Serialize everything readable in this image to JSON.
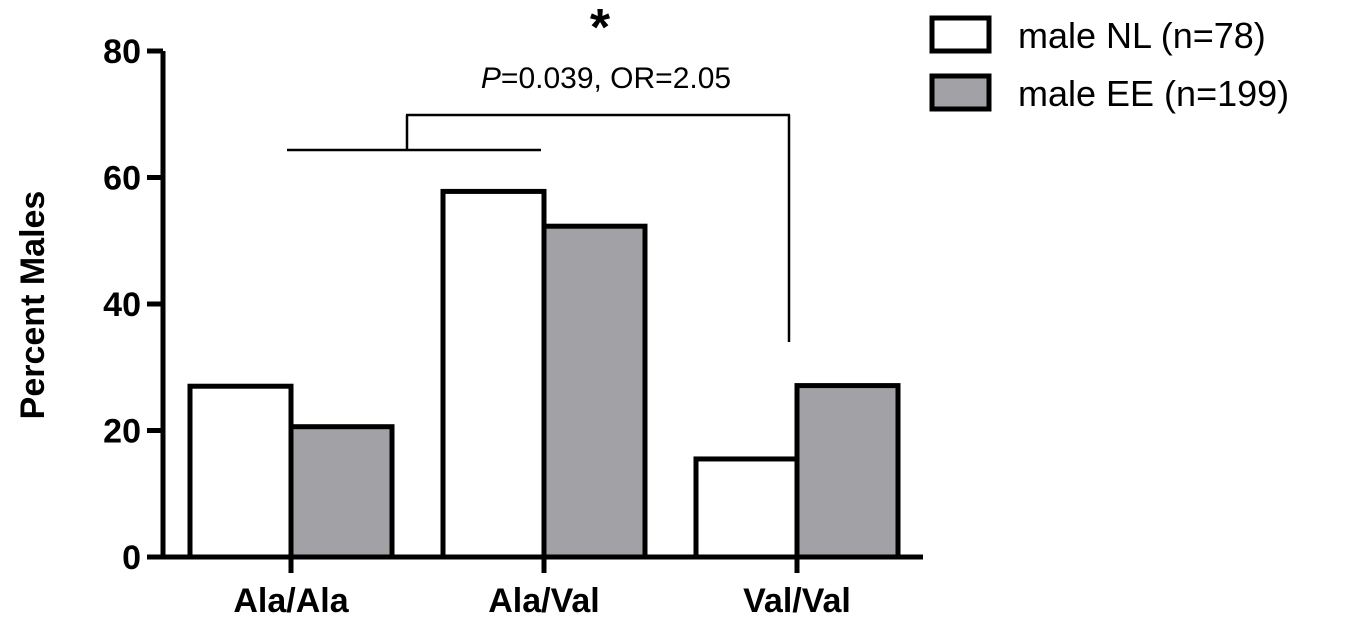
{
  "chart_data": {
    "type": "bar",
    "categories": [
      "Ala/Ala",
      "Ala/Val",
      "Val/Val"
    ],
    "series": [
      {
        "name": "male NL (n=78)",
        "values": [
          27,
          57.8,
          15.5
        ],
        "color": "#ffffff"
      },
      {
        "name": "male EE (n=199)",
        "values": [
          20.6,
          52.3,
          27.1
        ],
        "color": "#a2a1a6"
      }
    ],
    "xlabel": "",
    "ylabel": "Percent Males",
    "ylim": [
      0,
      80
    ],
    "yticks": [
      0,
      20,
      40,
      60,
      80
    ],
    "grid": false,
    "legend_position": "top-right",
    "annotations": {
      "significance_marker": "*",
      "p_prefix": "P",
      "p_rest": "=0.039, OR=2.05"
    }
  }
}
